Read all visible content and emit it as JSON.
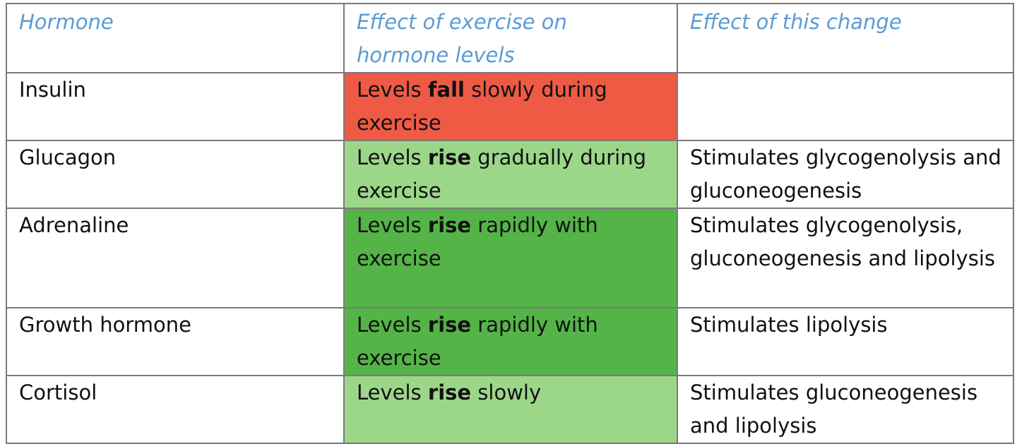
{
  "table": {
    "headers": {
      "hormone": "Hormone",
      "effect_exercise": "Effect of exercise on hormone levels",
      "effect_change": "Effect of this change"
    },
    "rows": [
      {
        "hormone": "Insulin",
        "effect_prefix": "Levels ",
        "effect_keyword": "fall",
        "effect_suffix": " slowly during exercise",
        "change": "",
        "fill_color": "#ef5a44"
      },
      {
        "hormone": "Glucagon",
        "effect_prefix": "Levels ",
        "effect_keyword": "rise",
        "effect_suffix": " gradually during exercise",
        "change": "Stimulates glycogenolysis and gluconeogenesis",
        "fill_color": "#9cd789"
      },
      {
        "hormone": "Adrenaline",
        "effect_prefix": "Levels ",
        "effect_keyword": "rise",
        "effect_suffix": " rapidly with exercise",
        "change": "Stimulates glycogenolysis, gluconeogenesis and lipolysis",
        "fill_color": "#54b447"
      },
      {
        "hormone": "Growth hormone",
        "effect_prefix": "Levels ",
        "effect_keyword": "rise",
        "effect_suffix": " rapidly with exercise",
        "change": "Stimulates lipolysis",
        "fill_color": "#54b447"
      },
      {
        "hormone": "Cortisol",
        "effect_prefix": "Levels ",
        "effect_keyword": "rise",
        "effect_suffix": " slowly",
        "change": "Stimulates gluconeogenesis and lipolysis",
        "fill_color": "#9cd789"
      }
    ]
  },
  "colors": {
    "header_text": "#5b9bd5",
    "border": "#7a7a7a"
  }
}
